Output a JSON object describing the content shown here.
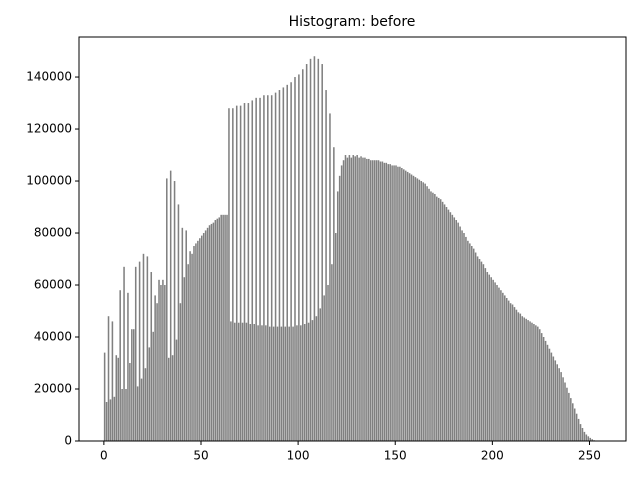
{
  "chart_data": {
    "type": "histogram",
    "title": "Histogram: before",
    "color": "#808080",
    "bins": [
      0,
      1,
      2,
      3,
      4,
      5,
      6,
      7,
      8,
      9,
      10,
      11,
      12,
      13,
      14,
      15,
      16,
      17,
      18,
      19,
      20,
      21,
      22,
      23,
      24,
      25,
      26,
      27,
      28,
      29,
      30,
      31,
      32,
      33,
      34,
      35,
      36,
      37,
      38,
      39,
      40,
      41,
      42,
      43,
      44,
      45,
      46,
      47,
      48,
      49,
      50,
      51,
      52,
      53,
      54,
      55,
      56,
      57,
      58,
      59,
      60,
      61,
      62,
      63,
      64,
      65,
      66,
      67,
      68,
      69,
      70,
      71,
      72,
      73,
      74,
      75,
      76,
      77,
      78,
      79,
      80,
      81,
      82,
      83,
      84,
      85,
      86,
      87,
      88,
      89,
      90,
      91,
      92,
      93,
      94,
      95,
      96,
      97,
      98,
      99,
      100,
      101,
      102,
      103,
      104,
      105,
      106,
      107,
      108,
      109,
      110,
      111,
      112,
      113,
      114,
      115,
      116,
      117,
      118,
      119,
      120,
      121,
      122,
      123,
      124,
      125,
      126,
      127,
      128,
      129,
      130,
      131,
      132,
      133,
      134,
      135,
      136,
      137,
      138,
      139,
      140,
      141,
      142,
      143,
      144,
      145,
      146,
      147,
      148,
      149,
      150,
      151,
      152,
      153,
      154,
      155,
      156,
      157,
      158,
      159,
      160,
      161,
      162,
      163,
      164,
      165,
      166,
      167,
      168,
      169,
      170,
      171,
      172,
      173,
      174,
      175,
      176,
      177,
      178,
      179,
      180,
      181,
      182,
      183,
      184,
      185,
      186,
      187,
      188,
      189,
      190,
      191,
      192,
      193,
      194,
      195,
      196,
      197,
      198,
      199,
      200,
      201,
      202,
      203,
      204,
      205,
      206,
      207,
      208,
      209,
      210,
      211,
      212,
      213,
      214,
      215,
      216,
      217,
      218,
      219,
      220,
      221,
      222,
      223,
      224,
      225,
      226,
      227,
      228,
      229,
      230,
      231,
      232,
      233,
      234,
      235,
      236,
      237,
      238,
      239,
      240,
      241,
      242,
      243,
      244,
      245,
      246,
      247,
      248,
      249,
      250,
      251,
      252,
      253,
      254,
      255,
      256
    ],
    "values": [
      34000,
      15000,
      48000,
      16000,
      46000,
      17000,
      33000,
      32000,
      58000,
      20000,
      67000,
      20000,
      57000,
      30000,
      43000,
      43000,
      67000,
      21000,
      69000,
      24000,
      72000,
      28000,
      71000,
      36000,
      65000,
      42000,
      56000,
      53000,
      62000,
      60000,
      62000,
      60000,
      101000,
      32000,
      104000,
      33000,
      100000,
      39000,
      91000,
      53000,
      82000,
      63000,
      81000,
      68000,
      73000,
      72000,
      75000,
      76000,
      77000,
      78000,
      79000,
      80000,
      81000,
      82000,
      83000,
      83500,
      84000,
      85000,
      85500,
      86000,
      87000,
      87000,
      87000,
      87000,
      128000,
      46000,
      128000,
      45500,
      129000,
      45500,
      129000,
      45500,
      130000,
      45500,
      130000,
      45000,
      131000,
      45000,
      132000,
      44500,
      132000,
      44500,
      133000,
      44500,
      133000,
      44000,
      133000,
      44000,
      134000,
      44000,
      135000,
      44000,
      136000,
      44000,
      137000,
      44000,
      138000,
      44000,
      140000,
      44500,
      141000,
      44500,
      143000,
      45000,
      145000,
      45500,
      147000,
      46500,
      148000,
      48000,
      147000,
      51000,
      145000,
      56000,
      135000,
      60000,
      126000,
      68000,
      113000,
      80000,
      96000,
      102000,
      106000,
      108000,
      110000,
      109000,
      110000,
      109000,
      110000,
      109500,
      110000,
      109000,
      109500,
      109000,
      109000,
      108500,
      108500,
      108000,
      108000,
      108000,
      108000,
      108000,
      107500,
      107500,
      107000,
      107000,
      106500,
      106500,
      106000,
      106000,
      106000,
      105500,
      105500,
      105000,
      104500,
      104000,
      103500,
      103000,
      102500,
      102000,
      101500,
      101000,
      100500,
      100000,
      99500,
      99000,
      98000,
      97000,
      96000,
      95500,
      95000,
      94000,
      93500,
      93000,
      92000,
      91000,
      90000,
      89000,
      88000,
      87000,
      86000,
      85000,
      84000,
      82500,
      81000,
      80000,
      78500,
      77000,
      76000,
      75000,
      74000,
      72500,
      71000,
      70000,
      69000,
      68000,
      66500,
      65000,
      64000,
      63000,
      62000,
      61000,
      60000,
      59000,
      58000,
      57000,
      56000,
      55000,
      54000,
      53000,
      52500,
      51500,
      50500,
      49500,
      49000,
      48000,
      47500,
      47000,
      46500,
      46000,
      45500,
      45000,
      44500,
      44000,
      43000,
      41500,
      40000,
      38500,
      37000,
      35500,
      34000,
      32500,
      31000,
      29500,
      28000,
      26500,
      24500,
      22500,
      20500,
      18500,
      16500,
      14500,
      12500,
      10500,
      8500,
      6500,
      5000,
      3500,
      2500,
      1800,
      1200,
      700,
      300,
      0,
      0,
      0
    ],
    "xlim": [
      -12.8,
      268.8
    ],
    "xticks": [
      0,
      50,
      100,
      150,
      200,
      250
    ],
    "ylim": [
      0,
      155400
    ],
    "yticks": [
      0,
      20000,
      40000,
      60000,
      80000,
      100000,
      120000,
      140000
    ]
  }
}
